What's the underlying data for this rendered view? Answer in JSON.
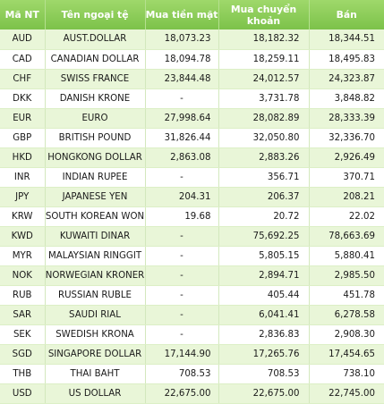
{
  "table": {
    "headers": {
      "code": "Mã NT",
      "name": "Tên ngoại tệ",
      "buy_cash": "Mua tiền mặt",
      "buy_transfer": "Mua chuyển khoản",
      "sell": "Bán"
    },
    "rows": [
      {
        "code": "AUD",
        "name": "AUST.DOLLAR",
        "buy_cash": "18,073.23",
        "buy_transfer": "18,182.32",
        "sell": "18,344.51"
      },
      {
        "code": "CAD",
        "name": "CANADIAN DOLLAR",
        "buy_cash": "18,094.78",
        "buy_transfer": "18,259.11",
        "sell": "18,495.83"
      },
      {
        "code": "CHF",
        "name": "SWISS FRANCE",
        "buy_cash": "23,844.48",
        "buy_transfer": "24,012.57",
        "sell": "24,323.87"
      },
      {
        "code": "DKK",
        "name": "DANISH KRONE",
        "buy_cash": "-",
        "buy_transfer": "3,731.78",
        "sell": "3,848.82"
      },
      {
        "code": "EUR",
        "name": "EURO",
        "buy_cash": "27,998.64",
        "buy_transfer": "28,082.89",
        "sell": "28,333.39"
      },
      {
        "code": "GBP",
        "name": "BRITISH POUND",
        "buy_cash": "31,826.44",
        "buy_transfer": "32,050.80",
        "sell": "32,336.70"
      },
      {
        "code": "HKD",
        "name": "HONGKONG DOLLAR",
        "buy_cash": "2,863.08",
        "buy_transfer": "2,883.26",
        "sell": "2,926.49"
      },
      {
        "code": "INR",
        "name": "INDIAN RUPEE",
        "buy_cash": "-",
        "buy_transfer": "356.71",
        "sell": "370.71"
      },
      {
        "code": "JPY",
        "name": "JAPANESE YEN",
        "buy_cash": "204.31",
        "buy_transfer": "206.37",
        "sell": "208.21"
      },
      {
        "code": "KRW",
        "name": "SOUTH KOREAN WON",
        "buy_cash": "19.68",
        "buy_transfer": "20.72",
        "sell": "22.02"
      },
      {
        "code": "KWD",
        "name": "KUWAITI DINAR",
        "buy_cash": "-",
        "buy_transfer": "75,692.25",
        "sell": "78,663.69"
      },
      {
        "code": "MYR",
        "name": "MALAYSIAN RINGGIT",
        "buy_cash": "-",
        "buy_transfer": "5,805.15",
        "sell": "5,880.41"
      },
      {
        "code": "NOK",
        "name": "NORWEGIAN KRONER",
        "buy_cash": "-",
        "buy_transfer": "2,894.71",
        "sell": "2,985.50"
      },
      {
        "code": "RUB",
        "name": "RUSSIAN RUBLE",
        "buy_cash": "-",
        "buy_transfer": "405.44",
        "sell": "451.78"
      },
      {
        "code": "SAR",
        "name": "SAUDI RIAL",
        "buy_cash": "-",
        "buy_transfer": "6,041.41",
        "sell": "6,278.58"
      },
      {
        "code": "SEK",
        "name": "SWEDISH KRONA",
        "buy_cash": "-",
        "buy_transfer": "2,836.83",
        "sell": "2,908.30"
      },
      {
        "code": "SGD",
        "name": "SINGAPORE DOLLAR",
        "buy_cash": "17,144.90",
        "buy_transfer": "17,265.76",
        "sell": "17,454.65"
      },
      {
        "code": "THB",
        "name": "THAI BAHT",
        "buy_cash": "708.53",
        "buy_transfer": "708.53",
        "sell": "738.10"
      },
      {
        "code": "USD",
        "name": "US DOLLAR",
        "buy_cash": "22,675.00",
        "buy_transfer": "22,675.00",
        "sell": "22,745.00"
      }
    ]
  },
  "colors": {
    "header_bg": "#8ccd58",
    "header_text": "#ffffff",
    "row_alt_bg": "#e9f6d8",
    "row_bg": "#ffffff"
  }
}
